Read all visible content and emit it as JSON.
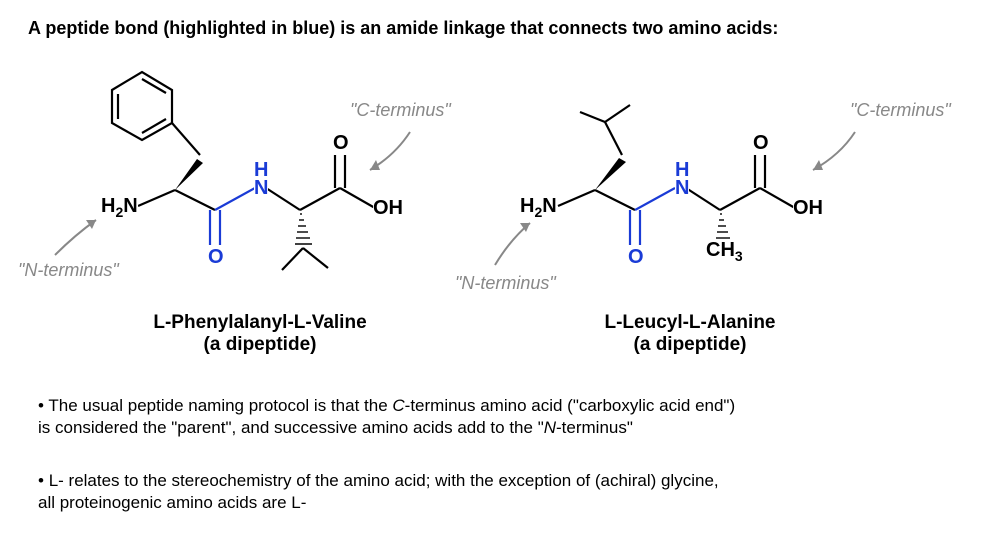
{
  "title": "A peptide bond (highlighted in blue) is an amide linkage that connects two amino acids:",
  "annotations": {
    "n_terminus": "\"N-terminus\"",
    "c_terminus": "\"C-terminus\""
  },
  "molecules": {
    "left": {
      "name_line1": "L-Phenylalanyl-L-Valine",
      "name_line2": "(a dipeptide)"
    },
    "right": {
      "name_line1": "L-Leucyl-L-Alanine",
      "name_line2": "(a dipeptide)"
    }
  },
  "atoms": {
    "H2N": "H",
    "sub2": "2",
    "N": "N",
    "H": "H",
    "Nblue": "N",
    "O": "O",
    "OH": "OH",
    "CH3": "CH",
    "sub3": "3"
  },
  "bullets": {
    "b1": "The usual peptide naming protocol is that the ",
    "b1_c": "C",
    "b1_mid": "-terminus amino acid (\"carboxylic acid end\")\n  is considered the \"parent\", and successive amino acids add to the \"",
    "b1_n": "N",
    "b1_end": "-terminus\"",
    "b2": "L- relates to the stereochemistry of the amino acid; with the exception of (achiral) glycine,\n   all proteinogenic amino acids are L-"
  },
  "style": {
    "bond_color": "#000000",
    "highlight_color": "#1a3bd6",
    "annot_color": "#888888",
    "bond_width": 2.2,
    "arrow_color": "#888888"
  }
}
